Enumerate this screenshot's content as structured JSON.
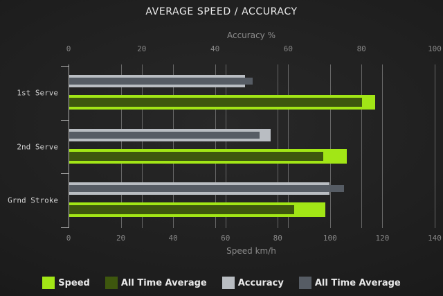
{
  "title": "AVERAGE SPEED / ACCURACY",
  "chart_data": {
    "type": "bar",
    "orientation": "horizontal",
    "title": "AVERAGE SPEED / ACCURACY",
    "categories": [
      "1st Serve",
      "2nd Serve",
      "Grnd Stroke"
    ],
    "series": [
      {
        "name": "Speed",
        "axis": "bottom",
        "color": "#a2e616",
        "values": [
          117,
          106,
          98
        ]
      },
      {
        "name": "All Time Average",
        "axis": "bottom",
        "color": "#3e570e",
        "values": [
          112,
          97,
          86
        ]
      },
      {
        "name": "Accuracy",
        "axis": "top",
        "color": "#b9bdc2",
        "values": [
          48,
          55,
          71
        ]
      },
      {
        "name": "All Time Average",
        "axis": "top",
        "color": "#565c64",
        "values": [
          50,
          52,
          75
        ]
      }
    ],
    "axes": {
      "top": {
        "label": "Accuracy %",
        "min": 0,
        "max": 100,
        "ticks": [
          0,
          20,
          40,
          60,
          80,
          100
        ]
      },
      "bottom": {
        "label": "Speed km/h",
        "min": 0,
        "max": 140,
        "ticks": [
          0,
          20,
          40,
          60,
          80,
          100,
          120,
          140
        ]
      }
    },
    "grid": true,
    "legend_position": "bottom"
  },
  "legend": [
    {
      "label": "Speed",
      "color": "#a2e616"
    },
    {
      "label": "All Time Average",
      "color": "#3e570e"
    },
    {
      "label": "Accuracy",
      "color": "#b9bdc2"
    },
    {
      "label": "All Time Average",
      "color": "#565c64"
    }
  ],
  "colors": {
    "background": "#1e1e1e",
    "speed": "#a2e616",
    "speed_all_time_average": "#3e570e",
    "accuracy": "#b9bdc2",
    "accuracy_all_time_average": "#565c64"
  }
}
